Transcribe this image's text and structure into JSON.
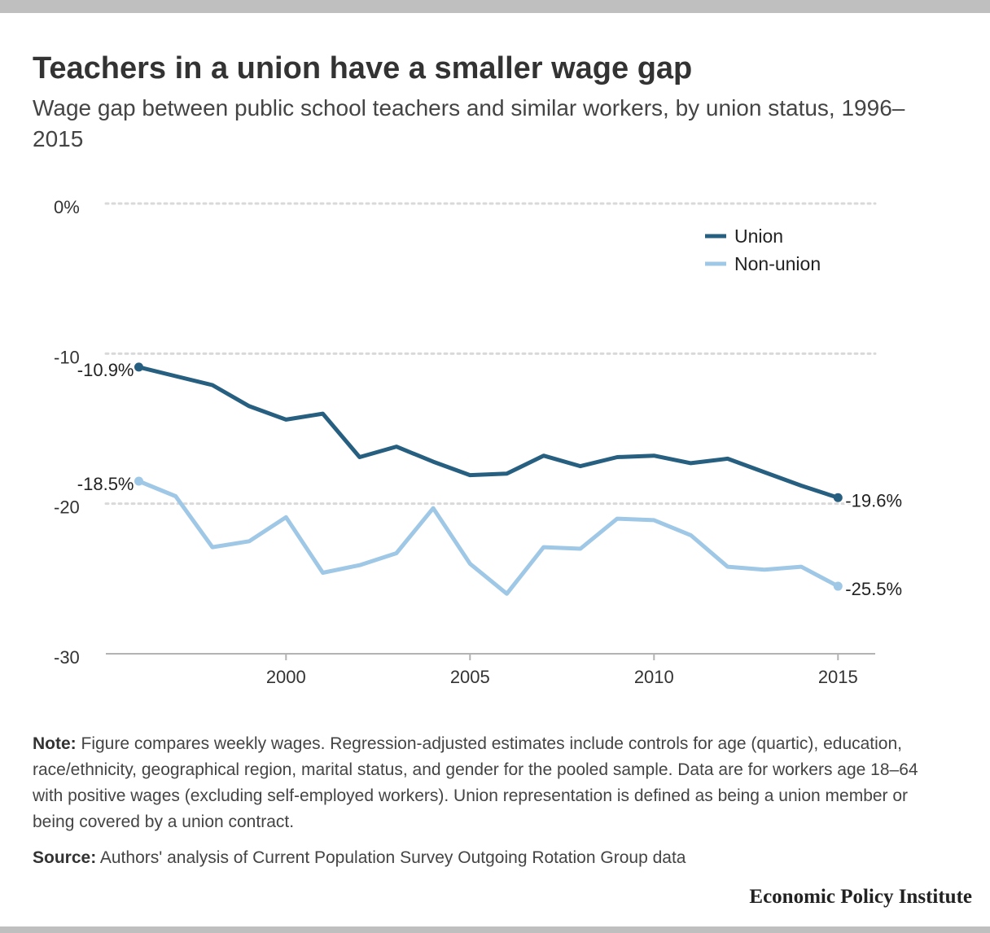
{
  "header": {
    "title": "Teachers in a union have a smaller wage gap",
    "subtitle": "Wage gap between public school teachers and similar workers, by union status, 1996–2015"
  },
  "chart_data": {
    "type": "line",
    "x": [
      1996,
      1997,
      1998,
      1999,
      2000,
      2001,
      2002,
      2003,
      2004,
      2005,
      2006,
      2007,
      2008,
      2009,
      2010,
      2011,
      2012,
      2013,
      2014,
      2015
    ],
    "ylim": [
      -30,
      0
    ],
    "xlim": [
      1995.5,
      2016
    ],
    "y_ticks": [
      {
        "value": 0,
        "label": "0%"
      },
      {
        "value": -10,
        "label": "-10"
      },
      {
        "value": -20,
        "label": "-20"
      },
      {
        "value": -30,
        "label": "-30"
      }
    ],
    "x_ticks": [
      {
        "value": 2000,
        "label": "2000"
      },
      {
        "value": 2005,
        "label": "2005"
      },
      {
        "value": 2010,
        "label": "2010"
      },
      {
        "value": 2015,
        "label": "2015"
      }
    ],
    "grid": "horizontal-dotted",
    "legend_position": "top-right",
    "series": [
      {
        "name": "Union",
        "color": "#275f80",
        "values": [
          -10.9,
          -11.5,
          -12.1,
          -13.5,
          -14.4,
          -14.0,
          -16.9,
          -16.2,
          -17.2,
          -18.1,
          -18.0,
          -16.8,
          -17.5,
          -16.9,
          -16.8,
          -17.3,
          -17.0,
          -17.9,
          -18.8,
          -19.6
        ],
        "start_label": "-10.9%",
        "end_label": "-19.6%"
      },
      {
        "name": "Non-union",
        "color": "#9fc7e6",
        "values": [
          -18.5,
          -19.5,
          -22.9,
          -22.5,
          -20.9,
          -24.6,
          -24.1,
          -23.3,
          -20.3,
          -24.0,
          -26.0,
          -22.9,
          -23.0,
          -21.0,
          -21.1,
          -22.1,
          -24.2,
          -24.4,
          -24.2,
          -25.5
        ],
        "start_label": "-18.5%",
        "end_label": "-25.5%"
      }
    ]
  },
  "footer": {
    "note_label": "Note:",
    "note_text": " Figure compares weekly wages. Regression-adjusted estimates include controls for age (quartic), education, race/ethnicity, geographical region, marital status, and gender for the pooled sample. Data are for workers age 18–64 with positive wages (excluding self-employed workers). Union representation is defined as being a union member or being covered by a union contract.",
    "source_label": "Source:",
    "source_text": " Authors' analysis of Current Population Survey Outgoing Rotation Group data",
    "brand": "Economic Policy Institute"
  }
}
